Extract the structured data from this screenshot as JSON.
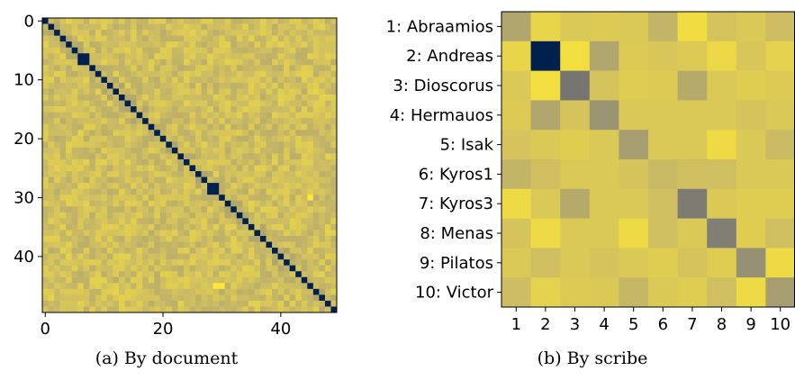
{
  "chart_data": [
    {
      "type": "heatmap",
      "caption": "(a) By document",
      "n": 50,
      "xticks": [
        0,
        20,
        40
      ],
      "yticks": [
        0,
        10,
        20,
        30,
        40
      ],
      "colormap": "cividis",
      "diagonal_value": 0.0,
      "off_diagonal_typical_value": 0.82,
      "dark_blocks": [
        [
          6,
          7
        ],
        [
          28,
          29
        ]
      ],
      "bright_cells": [
        [
          30,
          45
        ],
        [
          45,
          30
        ],
        [
          45,
          29
        ]
      ]
    },
    {
      "type": "heatmap",
      "caption": "(b) By scribe",
      "colormap": "cividis",
      "row_labels": [
        "1: Abraamios",
        "2: Andreas",
        "3: Dioscorus",
        "4: Hermauos",
        "5: Isak",
        "6: Kyros1",
        "7: Kyros3",
        "8: Menas",
        "9: Pilatos",
        "10: Victor"
      ],
      "col_labels": [
        "1",
        "2",
        "3",
        "4",
        "5",
        "6",
        "7",
        "8",
        "9",
        "10"
      ],
      "values": [
        [
          0.7,
          0.92,
          0.86,
          0.87,
          0.86,
          0.77,
          0.95,
          0.84,
          0.86,
          0.81
        ],
        [
          0.92,
          0.0,
          0.96,
          0.7,
          0.87,
          0.85,
          0.87,
          0.93,
          0.85,
          0.9
        ],
        [
          0.86,
          0.96,
          0.45,
          0.84,
          0.88,
          0.87,
          0.72,
          0.86,
          0.88,
          0.87
        ],
        [
          0.87,
          0.7,
          0.84,
          0.62,
          0.86,
          0.86,
          0.86,
          0.86,
          0.84,
          0.86
        ],
        [
          0.84,
          0.86,
          0.88,
          0.86,
          0.66,
          0.86,
          0.86,
          0.94,
          0.86,
          0.8
        ],
        [
          0.77,
          0.82,
          0.86,
          0.86,
          0.84,
          0.79,
          0.82,
          0.82,
          0.86,
          0.86
        ],
        [
          0.94,
          0.86,
          0.72,
          0.86,
          0.86,
          0.82,
          0.48,
          0.86,
          0.88,
          0.88
        ],
        [
          0.84,
          0.94,
          0.86,
          0.86,
          0.94,
          0.82,
          0.86,
          0.5,
          0.88,
          0.82
        ],
        [
          0.86,
          0.82,
          0.86,
          0.84,
          0.86,
          0.88,
          0.84,
          0.88,
          0.6,
          0.94
        ],
        [
          0.81,
          0.9,
          0.87,
          0.86,
          0.78,
          0.86,
          0.88,
          0.82,
          0.94,
          0.66
        ]
      ]
    }
  ]
}
